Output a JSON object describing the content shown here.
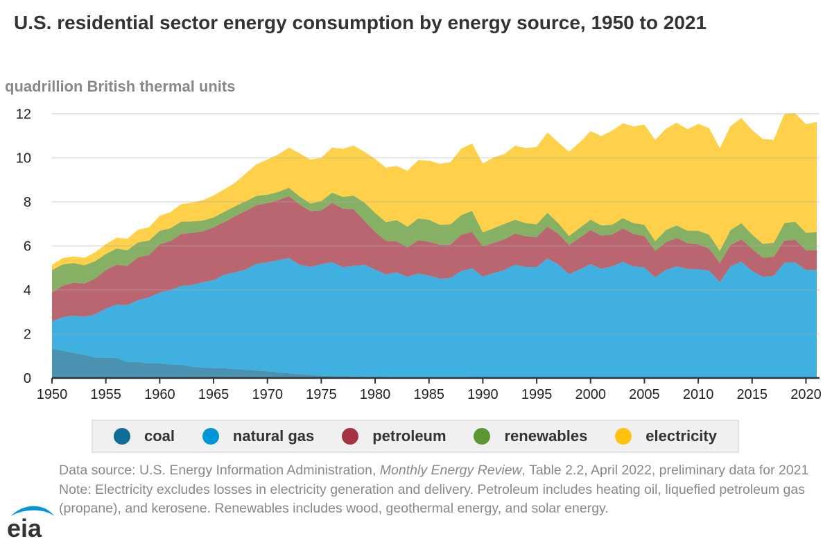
{
  "title": "U.S. residential sector energy consumption by energy source, 1950 to 2021",
  "chart_data": {
    "type": "area",
    "stacked": true,
    "title": "U.S. residential sector energy consumption by energy source, 1950 to 2021",
    "ylabel": "quadrillion British thermal units",
    "xlabel": "",
    "xlim": [
      1950,
      2021
    ],
    "ylim": [
      0,
      12
    ],
    "x_ticks": [
      "1950",
      "1955",
      "1960",
      "1965",
      "1970",
      "1975",
      "1980",
      "1985",
      "1990",
      "1995",
      "2000",
      "2005",
      "2010",
      "2015",
      "2020"
    ],
    "y_ticks": [
      "0",
      "2",
      "4",
      "6",
      "8",
      "10",
      "12"
    ],
    "grid": "horizontal",
    "legend_position": "bottom",
    "x_start": 1950,
    "series": [
      {
        "name": "coal",
        "color": "#0f6e97",
        "values": [
          1.33,
          1.24,
          1.15,
          1.05,
          0.94,
          0.94,
          0.91,
          0.73,
          0.73,
          0.66,
          0.66,
          0.61,
          0.6,
          0.52,
          0.47,
          0.45,
          0.45,
          0.41,
          0.37,
          0.35,
          0.31,
          0.26,
          0.21,
          0.18,
          0.14,
          0.1,
          0.09,
          0.08,
          0.07,
          0.06,
          0.05,
          0.04,
          0.04,
          0.04,
          0.04,
          0.04,
          0.04,
          0.04,
          0.04,
          0.03,
          0.03,
          0.03,
          0.03,
          0.03,
          0.03,
          0.02,
          0.02,
          0.02,
          0.01,
          0.01,
          0.01,
          0.01,
          0.01,
          0.01,
          0.01,
          0.01,
          0.01,
          0.01,
          0.01,
          0.01,
          0.01,
          0.01,
          0,
          0,
          0,
          0,
          0,
          0,
          0,
          0,
          0,
          0
        ]
      },
      {
        "name": "natural gas",
        "color": "#0096d7",
        "values": [
          1.24,
          1.52,
          1.68,
          1.73,
          1.95,
          2.21,
          2.42,
          2.58,
          2.81,
          3.0,
          3.22,
          3.38,
          3.58,
          3.7,
          3.88,
          3.99,
          4.24,
          4.39,
          4.56,
          4.84,
          4.94,
          5.09,
          5.23,
          4.96,
          4.9,
          5.07,
          5.17,
          4.95,
          5.02,
          5.08,
          4.88,
          4.66,
          4.76,
          4.55,
          4.71,
          4.61,
          4.47,
          4.5,
          4.82,
          4.95,
          4.57,
          4.74,
          4.87,
          5.11,
          5.01,
          5.02,
          5.41,
          5.14,
          4.71,
          4.92,
          5.16,
          4.95,
          5.05,
          5.27,
          5.05,
          5.01,
          4.56,
          4.9,
          5.06,
          4.94,
          4.93,
          4.87,
          4.35,
          5.07,
          5.28,
          4.86,
          4.59,
          4.64,
          5.24,
          5.25,
          4.9,
          4.9
        ]
      },
      {
        "name": "petroleum",
        "color": "#a33340",
        "values": [
          1.31,
          1.44,
          1.49,
          1.51,
          1.62,
          1.75,
          1.81,
          1.78,
          1.94,
          1.92,
          2.19,
          2.23,
          2.36,
          2.37,
          2.31,
          2.4,
          2.39,
          2.55,
          2.66,
          2.66,
          2.69,
          2.73,
          2.82,
          2.73,
          2.54,
          2.44,
          2.68,
          2.66,
          2.57,
          2.0,
          1.7,
          1.52,
          1.41,
          1.34,
          1.51,
          1.54,
          1.54,
          1.51,
          1.65,
          1.65,
          1.38,
          1.37,
          1.4,
          1.42,
          1.39,
          1.36,
          1.44,
          1.4,
          1.31,
          1.44,
          1.55,
          1.51,
          1.45,
          1.52,
          1.48,
          1.43,
          1.2,
          1.25,
          1.3,
          1.17,
          1.13,
          1.0,
          0.87,
          0.97,
          1.02,
          1.0,
          0.87,
          0.87,
          1.0,
          1.02,
          0.9,
          0.9
        ]
      },
      {
        "name": "renewables",
        "color": "#5d9732",
        "values": [
          1.02,
          0.96,
          0.9,
          0.83,
          0.79,
          0.73,
          0.74,
          0.71,
          0.68,
          0.66,
          0.61,
          0.58,
          0.56,
          0.52,
          0.49,
          0.45,
          0.47,
          0.45,
          0.44,
          0.42,
          0.38,
          0.37,
          0.38,
          0.37,
          0.34,
          0.42,
          0.48,
          0.53,
          0.62,
          0.83,
          0.87,
          0.86,
          0.96,
          0.94,
          0.98,
          1.0,
          0.91,
          0.93,
          0.89,
          0.96,
          0.63,
          0.66,
          0.7,
          0.63,
          0.6,
          0.58,
          0.63,
          0.47,
          0.42,
          0.45,
          0.47,
          0.46,
          0.45,
          0.46,
          0.49,
          0.51,
          0.44,
          0.56,
          0.56,
          0.57,
          0.62,
          0.63,
          0.55,
          0.68,
          0.73,
          0.65,
          0.63,
          0.63,
          0.79,
          0.83,
          0.79,
          0.83
        ]
      },
      {
        "name": "electricity",
        "color": "#ffc20e",
        "values": [
          0.24,
          0.29,
          0.3,
          0.34,
          0.4,
          0.45,
          0.49,
          0.53,
          0.58,
          0.6,
          0.69,
          0.73,
          0.8,
          0.86,
          0.92,
          1.0,
          1.02,
          1.07,
          1.26,
          1.44,
          1.6,
          1.7,
          1.82,
          1.96,
          2.0,
          1.97,
          2.04,
          2.19,
          2.27,
          2.31,
          2.45,
          2.47,
          2.46,
          2.54,
          2.65,
          2.68,
          2.77,
          2.82,
          3.02,
          3.06,
          3.13,
          3.22,
          3.17,
          3.36,
          3.41,
          3.51,
          3.65,
          3.67,
          3.83,
          3.88,
          4.02,
          4.06,
          4.27,
          4.31,
          4.39,
          4.55,
          4.6,
          4.6,
          4.66,
          4.61,
          4.85,
          4.84,
          4.67,
          4.72,
          4.77,
          4.75,
          4.77,
          4.67,
          4.97,
          4.92,
          4.93,
          5.0
        ]
      }
    ]
  },
  "notes": {
    "source_prefix": "Data source: U.S. Energy Information Administration, ",
    "source_italic": "Monthly Energy Review",
    "source_suffix": ", Table 2.2, April 2022, preliminary data for 2021",
    "note": "Note: Electricity excludes losses in electricity generation and delivery. Petroleum includes heating oil, liquefied petroleum gas (propane), and kerosene. Renewables includes wood, geothermal energy, and solar energy."
  },
  "logo": {
    "text": "eia",
    "color": "#0096d7"
  }
}
